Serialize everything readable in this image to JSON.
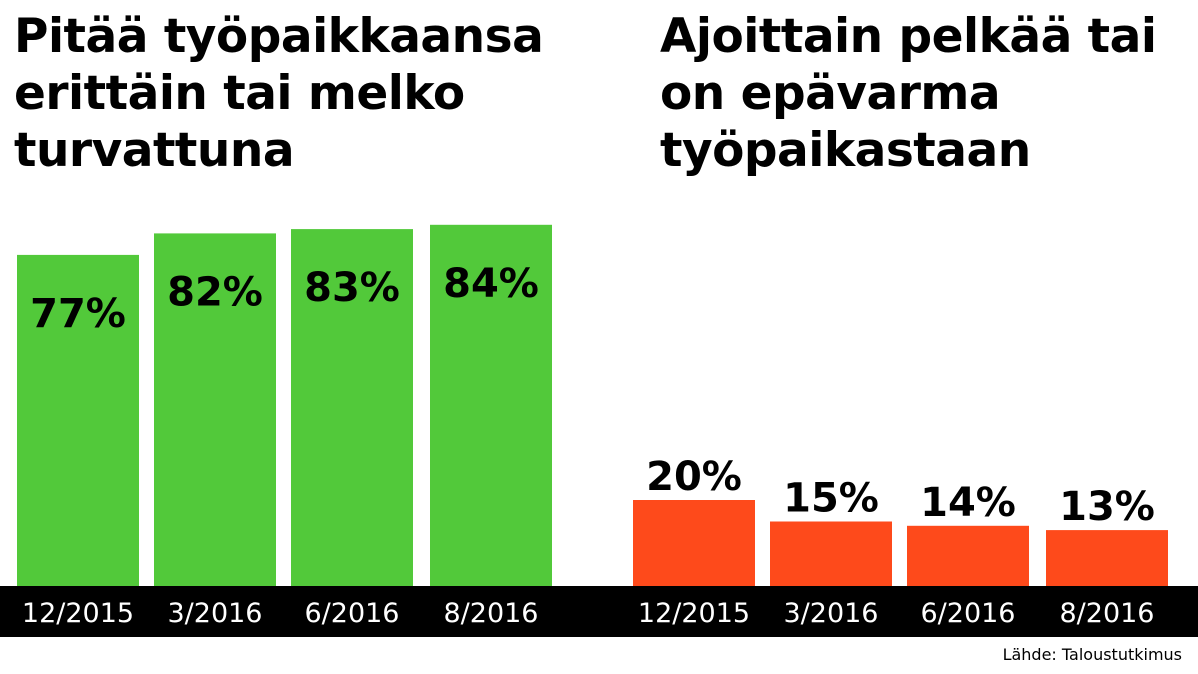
{
  "chart_data": [
    {
      "type": "bar",
      "title": "Pitää työpaikkaansa erittäin tai melko turvattuna",
      "categories": [
        "12/2015",
        "3/2016",
        "6/2016",
        "8/2016"
      ],
      "values": [
        77,
        82,
        83,
        84
      ],
      "value_labels": [
        "77%",
        "82%",
        "83%",
        "84%"
      ],
      "unit": "%",
      "color": "#52c93a",
      "ylim": [
        0,
        100
      ],
      "grid": false,
      "legend": "none"
    },
    {
      "type": "bar",
      "title": "Ajoittain pelkää tai on epävarma työpaikastaan",
      "categories": [
        "12/2015",
        "3/2016",
        "6/2016",
        "8/2016"
      ],
      "values": [
        20,
        15,
        14,
        13
      ],
      "value_labels": [
        "20%",
        "15%",
        "14%",
        "13%"
      ],
      "unit": "%",
      "color": "#fe4a1b",
      "ylim": [
        0,
        100
      ],
      "grid": false,
      "legend": "none"
    }
  ],
  "source": "Lähde: Taloustutkimus",
  "colors": {
    "background": "#ffffff",
    "axis_band": "#000000",
    "axis_text": "#ffffff",
    "text": "#000000"
  }
}
